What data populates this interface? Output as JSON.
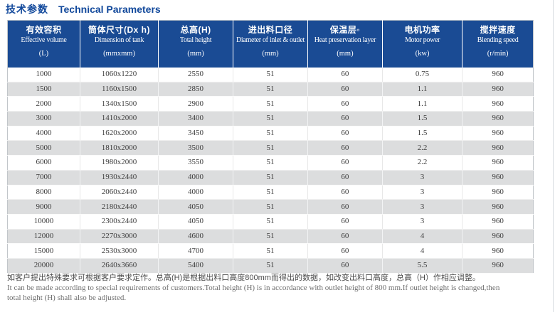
{
  "title": {
    "cn": "技术参数",
    "en": "Technical Parameters"
  },
  "table": {
    "columns": [
      {
        "cn": "有效容积",
        "en": "Effective volume",
        "unit": "(L)"
      },
      {
        "cn": "筒体尺寸(Dx h)",
        "en": "Dimension of tank",
        "unit": "(mmxmm)"
      },
      {
        "cn": "总高(H)",
        "en": "Total height",
        "unit": "(mm)"
      },
      {
        "cn": "进出料口径",
        "en": "Diameter of inlet & outlet",
        "unit": "(mm)"
      },
      {
        "cn": "保温层▫",
        "en": "Heat preservation layer",
        "unit": "(mm)"
      },
      {
        "cn": "电机功率",
        "en": "Motor power",
        "unit": "(kw)"
      },
      {
        "cn": "搅拌速度",
        "en": "Blending speed",
        "unit": "(r/min)"
      }
    ],
    "rows": [
      [
        "1000",
        "1060x1220",
        "2550",
        "51",
        "60",
        "0.75",
        "960"
      ],
      [
        "1500",
        "1160x1500",
        "2850",
        "51",
        "60",
        "1.1",
        "960"
      ],
      [
        "2000",
        "1340x1500",
        "2900",
        "51",
        "60",
        "1.1",
        "960"
      ],
      [
        "3000",
        "1410x2000",
        "3400",
        "51",
        "60",
        "1.5",
        "960"
      ],
      [
        "4000",
        "1620x2000",
        "3450",
        "51",
        "60",
        "1.5",
        "960"
      ],
      [
        "5000",
        "1810x2000",
        "3500",
        "51",
        "60",
        "2.2",
        "960"
      ],
      [
        "6000",
        "1980x2000",
        "3550",
        "51",
        "60",
        "2.2",
        "960"
      ],
      [
        "7000",
        "1930x2440",
        "4000",
        "51",
        "60",
        "3",
        "960"
      ],
      [
        "8000",
        "2060x2440",
        "4000",
        "51",
        "60",
        "3",
        "960"
      ],
      [
        "9000",
        "2180x2440",
        "4050",
        "51",
        "60",
        "3",
        "960"
      ],
      [
        "10000",
        "2300x2440",
        "4050",
        "51",
        "60",
        "3",
        "960"
      ],
      [
        "12000",
        "2270x3000",
        "4600",
        "51",
        "60",
        "4",
        "960"
      ],
      [
        "15000",
        "2530x3000",
        "4700",
        "51",
        "60",
        "4",
        "960"
      ],
      [
        "20000",
        "2640x3660",
        "5400",
        "51",
        "60",
        "5.5",
        "960"
      ]
    ]
  },
  "footnote": {
    "cn": "如客户提出特殊要求可根据客户要求定作。总高(H)是根据出料口高度800mm而得出的数据，如改变出料口高度，总高（H）作相应调整。",
    "en_line1": "It can be made according to special requirements of customers.Total height (H) is in accordance with outlet height of 800 mm.If outlet height is changed,then",
    "en_line2": "total height (H) shall also be adjusted."
  },
  "colors": {
    "header_bg": "#1a4b94",
    "title_text": "#11489b",
    "alt_row_bg": "#dcddde",
    "body_text": "#3d3d3d"
  }
}
